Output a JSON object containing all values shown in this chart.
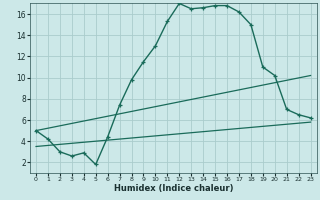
{
  "xlabel": "Humidex (Indice chaleur)",
  "bg_color": "#cce8e8",
  "grid_color": "#aacccc",
  "line_color": "#1a6b5a",
  "xlim": [
    -0.5,
    23.5
  ],
  "ylim": [
    1,
    17
  ],
  "xticks": [
    0,
    1,
    2,
    3,
    4,
    5,
    6,
    7,
    8,
    9,
    10,
    11,
    12,
    13,
    14,
    15,
    16,
    17,
    18,
    19,
    20,
    21,
    22,
    23
  ],
  "yticks": [
    2,
    4,
    6,
    8,
    10,
    12,
    14,
    16
  ],
  "curve1_x": [
    0,
    1,
    2,
    3,
    4,
    5,
    6,
    7,
    8,
    9,
    10,
    11,
    12,
    13,
    14,
    15,
    16,
    17,
    18,
    19,
    20,
    21,
    22,
    23
  ],
  "curve1_y": [
    5.0,
    4.2,
    3.0,
    2.6,
    2.9,
    1.8,
    4.4,
    7.4,
    9.8,
    11.5,
    13.0,
    15.3,
    17.0,
    16.5,
    16.6,
    16.8,
    16.8,
    16.2,
    15.0,
    11.0,
    10.2,
    7.0,
    6.5,
    6.2
  ],
  "curve2_x": [
    0,
    23
  ],
  "curve2_y": [
    3.5,
    5.8
  ],
  "curve3_x": [
    0,
    23
  ],
  "curve3_y": [
    5.0,
    10.2
  ]
}
